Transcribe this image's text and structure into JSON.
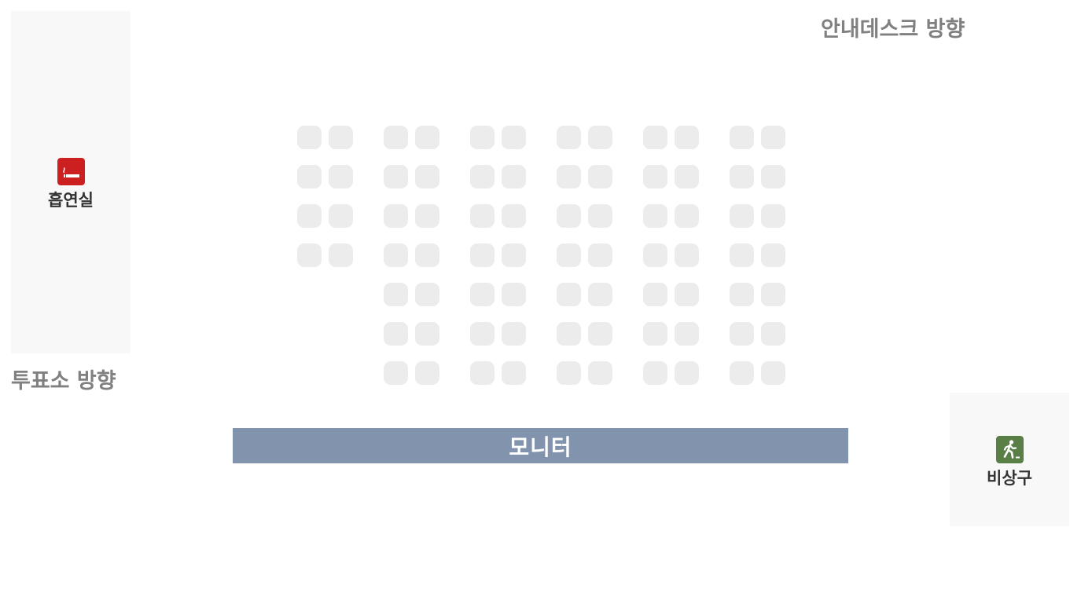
{
  "labels": {
    "info_desk_direction": "안내데스크 방향",
    "voting_direction": "투표소 방향",
    "monitor": "모니터"
  },
  "facilities": {
    "smoking_room": {
      "label": "흡연실",
      "icon": "smoking-icon",
      "icon_color": "#cc1f1f"
    },
    "emergency_exit": {
      "label": "비상구",
      "icon": "emergency-exit-icon",
      "icon_color": "#5a7f46"
    }
  },
  "seating": {
    "seat_color": "#ececec",
    "columns": [
      {
        "rows": 4
      },
      {
        "rows": 7
      },
      {
        "rows": 7
      },
      {
        "rows": 7
      },
      {
        "rows": 7
      },
      {
        "rows": 7
      }
    ],
    "seats_per_row_in_column": 2
  },
  "colors": {
    "monitor": "#8294ad",
    "panel": "#f8f8f8",
    "direction_text": "#808080"
  }
}
